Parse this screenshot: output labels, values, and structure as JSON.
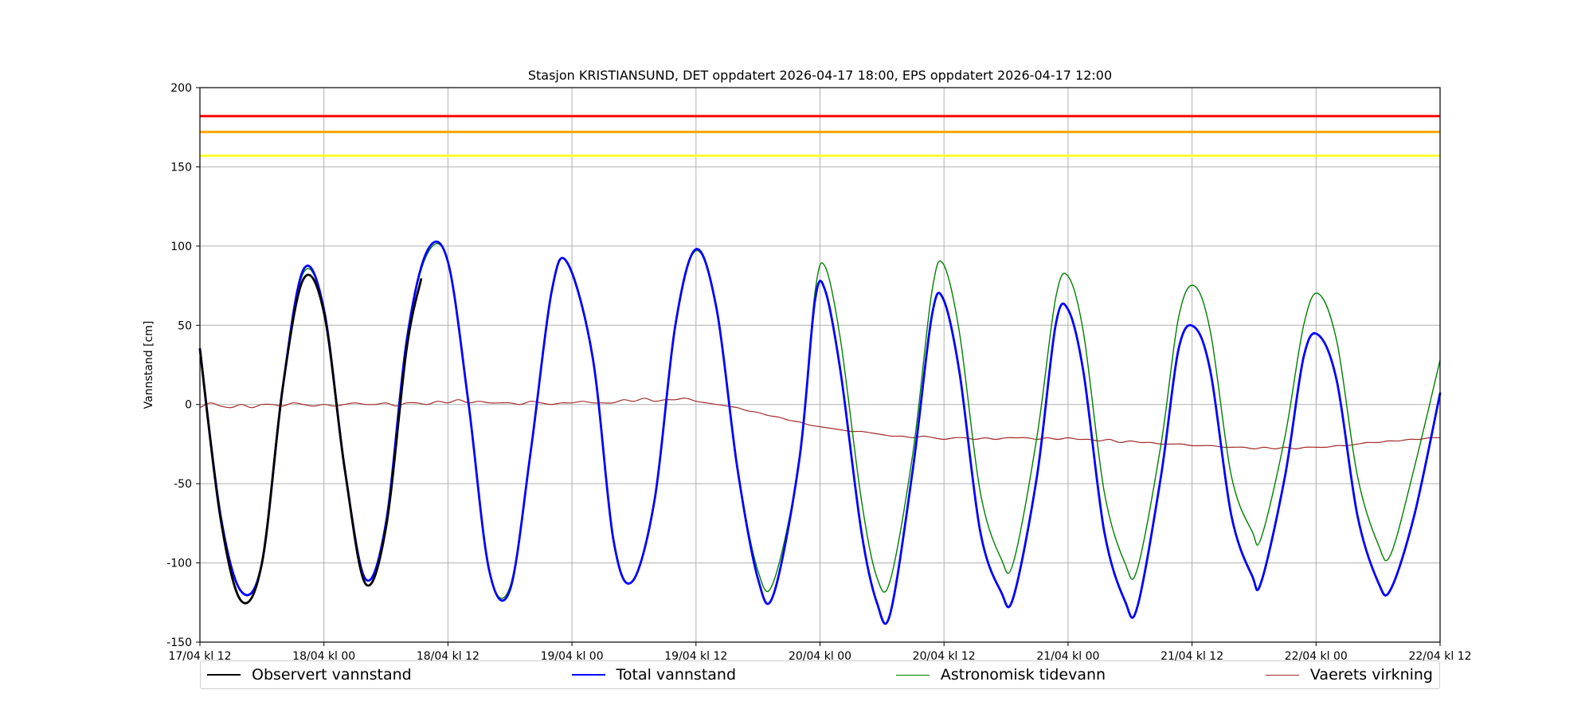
{
  "chart_data": {
    "type": "line",
    "title": "Stasjon KRISTIANSUND, DET oppdatert 2026-04-17 18:00, EPS oppdatert 2026-04-17 12:00",
    "xlabel": "",
    "ylabel": "Vannstand [cm]",
    "x_unit": "hours since 17/04 kl 12",
    "xlim": [
      0,
      120
    ],
    "ylim": [
      -150,
      200
    ],
    "x_ticks": [
      {
        "x": 0,
        "label": "17/04 kl 12"
      },
      {
        "x": 12,
        "label": "18/04 kl 00"
      },
      {
        "x": 24,
        "label": "18/04 kl 12"
      },
      {
        "x": 36,
        "label": "19/04 kl 00"
      },
      {
        "x": 48,
        "label": "19/04 kl 12"
      },
      {
        "x": 60,
        "label": "20/04 kl 00"
      },
      {
        "x": 72,
        "label": "20/04 kl 12"
      },
      {
        "x": 84,
        "label": "21/04 kl 00"
      },
      {
        "x": 96,
        "label": "21/04 kl 12"
      },
      {
        "x": 108,
        "label": "22/04 kl 00"
      },
      {
        "x": 120,
        "label": "22/04 kl 12"
      }
    ],
    "y_ticks": [
      -150,
      -100,
      -50,
      0,
      50,
      100,
      150,
      200
    ],
    "grid": true,
    "legend_position": "bottom",
    "thresholds": [
      {
        "value": 182,
        "color": "#ff0000"
      },
      {
        "value": 172,
        "color": "#ffa500"
      },
      {
        "value": 157,
        "color": "#ffff33"
      }
    ],
    "series": [
      {
        "name": "Vaerets virkning",
        "color": "#a52a2a",
        "width": 1.2,
        "points": [
          [
            0,
            -2
          ],
          [
            1,
            1
          ],
          [
            2,
            -1
          ],
          [
            3,
            -2
          ],
          [
            4,
            0
          ],
          [
            5,
            -2
          ],
          [
            6,
            0
          ],
          [
            7,
            0
          ],
          [
            8,
            -1
          ],
          [
            9,
            1
          ],
          [
            10,
            0
          ],
          [
            11,
            -1
          ],
          [
            12,
            0
          ],
          [
            13,
            -1
          ],
          [
            14,
            0
          ],
          [
            15,
            1
          ],
          [
            16,
            0
          ],
          [
            17,
            0
          ],
          [
            18,
            1
          ],
          [
            19,
            -1
          ],
          [
            20,
            1
          ],
          [
            21,
            1
          ],
          [
            22,
            0
          ],
          [
            23,
            2
          ],
          [
            24,
            1
          ],
          [
            25,
            3
          ],
          [
            26,
            1
          ],
          [
            27,
            2
          ],
          [
            28,
            1
          ],
          [
            29,
            1
          ],
          [
            30,
            1
          ],
          [
            31,
            0
          ],
          [
            32,
            2
          ],
          [
            33,
            1
          ],
          [
            34,
            0
          ],
          [
            35,
            1
          ],
          [
            36,
            1
          ],
          [
            37,
            2
          ],
          [
            38,
            1
          ],
          [
            39,
            1
          ],
          [
            40,
            1
          ],
          [
            41,
            3
          ],
          [
            42,
            2
          ],
          [
            43,
            4
          ],
          [
            44,
            2
          ],
          [
            45,
            3
          ],
          [
            46,
            3
          ],
          [
            47,
            4
          ],
          [
            48,
            2
          ],
          [
            49,
            1
          ],
          [
            50,
            0
          ],
          [
            51,
            -1
          ],
          [
            52,
            -2
          ],
          [
            53,
            -4
          ],
          [
            54,
            -5
          ],
          [
            55,
            -7
          ],
          [
            56,
            -8
          ],
          [
            57,
            -10
          ],
          [
            58,
            -11
          ],
          [
            59,
            -13
          ],
          [
            60,
            -14
          ],
          [
            61,
            -15
          ],
          [
            62,
            -16
          ],
          [
            63,
            -17
          ],
          [
            64,
            -17
          ],
          [
            65,
            -18
          ],
          [
            66,
            -19
          ],
          [
            67,
            -20
          ],
          [
            68,
            -20
          ],
          [
            69,
            -21
          ],
          [
            70,
            -20
          ],
          [
            71,
            -21
          ],
          [
            72,
            -22
          ],
          [
            73,
            -21
          ],
          [
            74,
            -21
          ],
          [
            75,
            -22
          ],
          [
            76,
            -21
          ],
          [
            77,
            -22
          ],
          [
            78,
            -21
          ],
          [
            79,
            -21
          ],
          [
            80,
            -21
          ],
          [
            81,
            -22
          ],
          [
            82,
            -21
          ],
          [
            83,
            -22
          ],
          [
            84,
            -21
          ],
          [
            85,
            -22
          ],
          [
            86,
            -22
          ],
          [
            87,
            -23
          ],
          [
            88,
            -22
          ],
          [
            89,
            -24
          ],
          [
            90,
            -23
          ],
          [
            91,
            -24
          ],
          [
            92,
            -24
          ],
          [
            93,
            -25
          ],
          [
            94,
            -25
          ],
          [
            95,
            -25
          ],
          [
            96,
            -26
          ],
          [
            97,
            -26
          ],
          [
            98,
            -26
          ],
          [
            99,
            -27
          ],
          [
            100,
            -27
          ],
          [
            101,
            -27
          ],
          [
            102,
            -28
          ],
          [
            103,
            -27
          ],
          [
            104,
            -28
          ],
          [
            105,
            -27
          ],
          [
            106,
            -28
          ],
          [
            107,
            -27
          ],
          [
            108,
            -27
          ],
          [
            109,
            -27
          ],
          [
            110,
            -26
          ],
          [
            111,
            -26
          ],
          [
            112,
            -25
          ],
          [
            113,
            -24
          ],
          [
            114,
            -24
          ],
          [
            115,
            -23
          ],
          [
            116,
            -23
          ],
          [
            117,
            -22
          ],
          [
            118,
            -22
          ],
          [
            119,
            -21
          ],
          [
            120,
            -21
          ]
        ]
      },
      {
        "name": "Astronomisk tidevann",
        "color": "#008000",
        "width": 1.4,
        "points": [
          [
            0,
            35
          ],
          [
            2,
            -70
          ],
          [
            4,
            -118
          ],
          [
            6,
            -100
          ],
          [
            8,
            10
          ],
          [
            10,
            83
          ],
          [
            12,
            60
          ],
          [
            14,
            -40
          ],
          [
            16,
            -110
          ],
          [
            18,
            -75
          ],
          [
            20,
            40
          ],
          [
            22,
            95
          ],
          [
            24,
            90
          ],
          [
            26,
            0
          ],
          [
            28,
            -105
          ],
          [
            30,
            -115
          ],
          [
            32,
            -30
          ],
          [
            34,
            70
          ],
          [
            35.5,
            90
          ],
          [
            38,
            30
          ],
          [
            40,
            -85
          ],
          [
            41.8,
            -112
          ],
          [
            44,
            -60
          ],
          [
            46,
            50
          ],
          [
            48,
            97
          ],
          [
            50,
            60
          ],
          [
            52,
            -40
          ],
          [
            54,
            -105
          ],
          [
            55.5,
            -112
          ],
          [
            58,
            -35
          ],
          [
            59.5,
            70
          ],
          [
            60.5,
            87
          ],
          [
            62,
            40
          ],
          [
            64,
            -60
          ],
          [
            65.5,
            -109
          ],
          [
            66.8,
            -111
          ],
          [
            69,
            -30
          ],
          [
            70.8,
            70
          ],
          [
            71.9,
            89
          ],
          [
            73.5,
            45
          ],
          [
            75.5,
            -55
          ],
          [
            77.5,
            -97
          ],
          [
            78.7,
            -100
          ],
          [
            81,
            -20
          ],
          [
            82.8,
            67
          ],
          [
            84,
            81
          ],
          [
            85.5,
            45
          ],
          [
            87.5,
            -55
          ],
          [
            89.5,
            -100
          ],
          [
            90.7,
            -104
          ],
          [
            93,
            -25
          ],
          [
            94.7,
            55
          ],
          [
            96.2,
            75
          ],
          [
            97.8,
            45
          ],
          [
            99.8,
            -45
          ],
          [
            101.8,
            -80
          ],
          [
            102.7,
            -84
          ],
          [
            105,
            -20
          ],
          [
            106.8,
            50
          ],
          [
            108.2,
            70
          ],
          [
            110,
            40
          ],
          [
            112,
            -45
          ],
          [
            114,
            -88
          ],
          [
            115.2,
            -95
          ],
          [
            117.5,
            -40
          ],
          [
            120,
            28
          ]
        ]
      },
      {
        "name": "Total vannstand",
        "color": "#0000ff",
        "width": 2.8,
        "points": [
          [
            0,
            35
          ],
          [
            2,
            -70
          ],
          [
            4,
            -118
          ],
          [
            6,
            -100
          ],
          [
            8,
            10
          ],
          [
            10,
            85
          ],
          [
            12,
            60
          ],
          [
            14,
            -40
          ],
          [
            16,
            -110
          ],
          [
            18,
            -75
          ],
          [
            20,
            40
          ],
          [
            22,
            97
          ],
          [
            24,
            90
          ],
          [
            26,
            0
          ],
          [
            28,
            -105
          ],
          [
            30,
            -117
          ],
          [
            32,
            -30
          ],
          [
            34,
            70
          ],
          [
            35.5,
            90
          ],
          [
            38,
            30
          ],
          [
            40,
            -85
          ],
          [
            41.8,
            -112
          ],
          [
            44,
            -60
          ],
          [
            46,
            50
          ],
          [
            48,
            98
          ],
          [
            50,
            60
          ],
          [
            52,
            -40
          ],
          [
            54,
            -110
          ],
          [
            55.5,
            -120
          ],
          [
            58,
            -35
          ],
          [
            59.5,
            65
          ],
          [
            60.5,
            72
          ],
          [
            62,
            20
          ],
          [
            64,
            -80
          ],
          [
            65.5,
            -125
          ],
          [
            66.8,
            -132
          ],
          [
            69,
            -40
          ],
          [
            70.8,
            55
          ],
          [
            71.9,
            67
          ],
          [
            73.5,
            20
          ],
          [
            75.5,
            -80
          ],
          [
            77.5,
            -118
          ],
          [
            78.7,
            -122
          ],
          [
            81,
            -45
          ],
          [
            82.8,
            50
          ],
          [
            84,
            60
          ],
          [
            85.5,
            20
          ],
          [
            87.5,
            -80
          ],
          [
            89.5,
            -124
          ],
          [
            90.7,
            -128
          ],
          [
            93,
            -45
          ],
          [
            94.7,
            35
          ],
          [
            96.2,
            49
          ],
          [
            97.8,
            20
          ],
          [
            99.8,
            -70
          ],
          [
            101.8,
            -108
          ],
          [
            102.7,
            -112
          ],
          [
            105,
            -45
          ],
          [
            106.8,
            30
          ],
          [
            108.2,
            44
          ],
          [
            110,
            15
          ],
          [
            112,
            -70
          ],
          [
            114,
            -112
          ],
          [
            115.2,
            -117
          ],
          [
            117.5,
            -70
          ],
          [
            120,
            7
          ]
        ]
      },
      {
        "name": "Observert vannstand",
        "color": "#000000",
        "width": 2.8,
        "points": [
          [
            0,
            35
          ],
          [
            2,
            -72
          ],
          [
            4,
            -124
          ],
          [
            6,
            -100
          ],
          [
            8,
            10
          ],
          [
            10,
            79
          ],
          [
            12,
            58
          ],
          [
            14,
            -40
          ],
          [
            16,
            -113
          ],
          [
            18,
            -78
          ],
          [
            20,
            35
          ],
          [
            21.4,
            79
          ]
        ]
      }
    ],
    "legend_order": [
      "Observert vannstand",
      "Total vannstand",
      "Astronomisk tidevann",
      "Vaerets virkning"
    ]
  }
}
